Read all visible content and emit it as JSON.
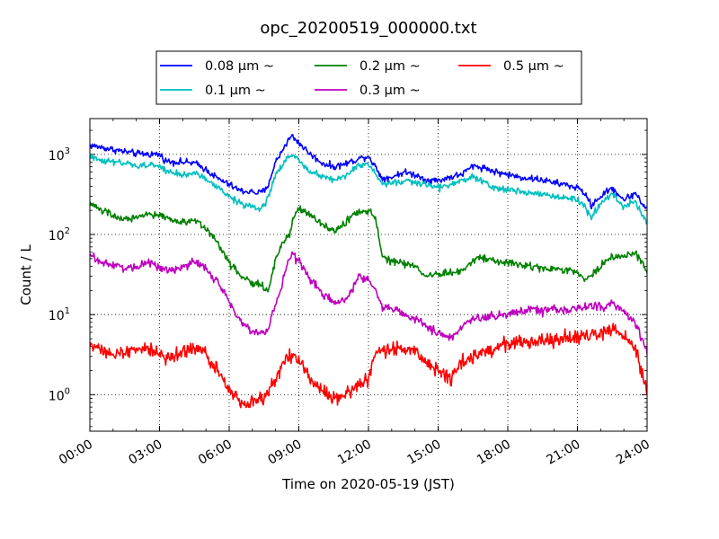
{
  "chart_data": {
    "type": "line",
    "title": "opc_20200519_000000.txt",
    "xlabel": "Time on 2020-05-19 (JST)",
    "ylabel": "Count / L",
    "x_unit": "hours",
    "xlim": [
      0,
      24
    ],
    "ylim": [
      0.35,
      2800
    ],
    "yscale": "log",
    "grid": true,
    "legend_position": "top-center",
    "xticks": [
      {
        "value": 0,
        "label": "00:00"
      },
      {
        "value": 3,
        "label": "03:00"
      },
      {
        "value": 6,
        "label": "06:00"
      },
      {
        "value": 9,
        "label": "09:00"
      },
      {
        "value": 12,
        "label": "12:00"
      },
      {
        "value": 15,
        "label": "15:00"
      },
      {
        "value": 18,
        "label": "18:00"
      },
      {
        "value": 21,
        "label": "21:00"
      },
      {
        "value": 24,
        "label": "24:00"
      }
    ],
    "yticks": [
      {
        "value": 1,
        "base": "10",
        "exp": "0"
      },
      {
        "value": 10,
        "base": "10",
        "exp": "1"
      },
      {
        "value": 100,
        "base": "10",
        "exp": "2"
      },
      {
        "value": 1000,
        "base": "10",
        "exp": "3"
      }
    ],
    "series": [
      {
        "name": "0.08 μm ~",
        "color": "#0000ff",
        "noise": 0.035,
        "x": [
          0,
          1,
          2,
          3,
          3.3,
          4,
          4.5,
          5,
          5.5,
          6,
          6.5,
          7,
          7.3,
          7.6,
          8,
          8.5,
          8.7,
          9,
          9.5,
          10,
          10.5,
          11,
          11.5,
          12,
          12.3,
          12.6,
          13,
          13.5,
          14,
          14.5,
          15,
          15.5,
          16,
          16.5,
          17,
          17.5,
          18,
          18.5,
          19,
          19.5,
          20,
          20.5,
          21,
          21.3,
          21.6,
          22,
          22.5,
          23,
          23.5,
          24
        ],
        "y": [
          1300,
          1150,
          1020,
          1000,
          820,
          800,
          780,
          650,
          500,
          420,
          350,
          340,
          330,
          360,
          800,
          1450,
          1700,
          1400,
          1000,
          780,
          700,
          760,
          870,
          960,
          700,
          500,
          520,
          600,
          560,
          480,
          470,
          520,
          560,
          720,
          680,
          600,
          560,
          520,
          500,
          480,
          440,
          420,
          380,
          330,
          230,
          300,
          380,
          270,
          330,
          200
        ]
      },
      {
        "name": "0.1 μm ~",
        "color": "#00bfbf",
        "noise": 0.035,
        "x": [
          0,
          1,
          2,
          3,
          3.3,
          4,
          4.5,
          5,
          5.5,
          6,
          6.5,
          7,
          7.3,
          7.6,
          8,
          8.5,
          8.7,
          9,
          9.5,
          10,
          10.5,
          11,
          11.5,
          12,
          12.3,
          12.6,
          13,
          13.5,
          14,
          14.5,
          15,
          15.5,
          16,
          16.5,
          17,
          17.5,
          18,
          18.5,
          19,
          19.5,
          20,
          20.5,
          21,
          21.3,
          21.6,
          22,
          22.5,
          23,
          23.5,
          24
        ],
        "y": [
          920,
          800,
          720,
          730,
          600,
          560,
          580,
          500,
          380,
          300,
          240,
          220,
          210,
          250,
          560,
          880,
          980,
          850,
          620,
          540,
          480,
          540,
          700,
          760,
          560,
          420,
          440,
          460,
          450,
          420,
          380,
          420,
          460,
          530,
          440,
          380,
          360,
          350,
          330,
          320,
          300,
          280,
          270,
          230,
          160,
          250,
          320,
          220,
          260,
          140
        ]
      },
      {
        "name": "0.2 μm ~",
        "color": "#008000",
        "noise": 0.04,
        "x": [
          0,
          0.5,
          1,
          1.5,
          2,
          2.5,
          3,
          3.5,
          4,
          4.5,
          5,
          5.5,
          6,
          6.5,
          7,
          7.5,
          7.7,
          8,
          8.3,
          8.6,
          8.8,
          9,
          9.5,
          10,
          10.5,
          11,
          11.5,
          12,
          12.3,
          12.6,
          13,
          13.5,
          14,
          14.5,
          15,
          15.5,
          16,
          16.5,
          17,
          17.5,
          18,
          18.5,
          19,
          19.5,
          20,
          20.5,
          21,
          21.3,
          21.6,
          22,
          22.5,
          23,
          23.5,
          24
        ],
        "y": [
          250,
          200,
          170,
          155,
          160,
          175,
          175,
          155,
          140,
          155,
          120,
          80,
          45,
          30,
          25,
          22,
          20,
          50,
          80,
          100,
          180,
          210,
          170,
          130,
          110,
          140,
          190,
          200,
          160,
          55,
          45,
          43,
          40,
          30,
          32,
          33,
          35,
          50,
          50,
          45,
          45,
          43,
          40,
          37,
          37,
          35,
          33,
          27,
          30,
          40,
          55,
          52,
          60,
          35
        ]
      },
      {
        "name": "0.3 μm ~",
        "color": "#bf00bf",
        "noise": 0.045,
        "x": [
          0,
          0.5,
          1,
          1.5,
          2,
          2.5,
          3,
          3.5,
          4,
          4.5,
          5,
          5.5,
          6,
          6.3,
          6.6,
          7,
          7.3,
          7.6,
          8,
          8.3,
          8.5,
          8.7,
          9,
          9.5,
          10,
          10.5,
          11,
          11.3,
          11.6,
          12,
          12.3,
          12.6,
          13,
          13.5,
          14,
          14.5,
          15,
          15.3,
          15.6,
          16,
          16.5,
          17,
          17.5,
          18,
          18.5,
          19,
          19.5,
          20,
          20.5,
          21,
          21.5,
          22,
          22.5,
          23,
          23.5,
          24
        ],
        "y": [
          55,
          45,
          42,
          38,
          40,
          45,
          40,
          35,
          40,
          45,
          38,
          25,
          15,
          10,
          8,
          6,
          6,
          6,
          13,
          25,
          45,
          60,
          45,
          28,
          18,
          14,
          15,
          20,
          30,
          28,
          20,
          12,
          12,
          10,
          9,
          7,
          6,
          5.5,
          5,
          7,
          9,
          9,
          10,
          10,
          11,
          12,
          11,
          12,
          11,
          12,
          13,
          12,
          14,
          11,
          8,
          3.5
        ]
      },
      {
        "name": "0.5 μm ~",
        "color": "#ff0000",
        "noise": 0.075,
        "x": [
          0,
          0.5,
          1,
          1.5,
          2,
          2.5,
          3,
          3.3,
          3.6,
          4,
          4.5,
          5,
          5.5,
          6,
          6.5,
          7,
          7.5,
          8,
          8.3,
          8.6,
          9,
          9.5,
          10,
          10.5,
          11,
          11.5,
          12,
          12.3,
          12.6,
          13,
          13.5,
          14,
          14.5,
          15,
          15.3,
          15.6,
          16,
          16.5,
          17,
          17.5,
          18,
          18.5,
          19,
          19.5,
          20,
          20.5,
          21,
          21.5,
          22,
          22.5,
          23,
          23.3,
          23.6,
          24
        ],
        "y": [
          4.5,
          3.8,
          3.2,
          3.3,
          3.6,
          3.8,
          3.3,
          2.8,
          3.0,
          3.5,
          3.8,
          3.2,
          2.0,
          1.2,
          0.8,
          0.8,
          0.9,
          1.5,
          2.5,
          3.2,
          2.8,
          1.6,
          1.2,
          0.9,
          1.0,
          1.3,
          1.5,
          3.5,
          3.8,
          3.6,
          3.5,
          3.5,
          2.5,
          2.0,
          1.8,
          1.6,
          2.5,
          3.0,
          3.3,
          3.8,
          4.2,
          4.5,
          4.5,
          4.8,
          4.8,
          5.0,
          5.2,
          5.5,
          6.0,
          6.5,
          5.5,
          4.5,
          3.0,
          1.0
        ]
      }
    ]
  }
}
